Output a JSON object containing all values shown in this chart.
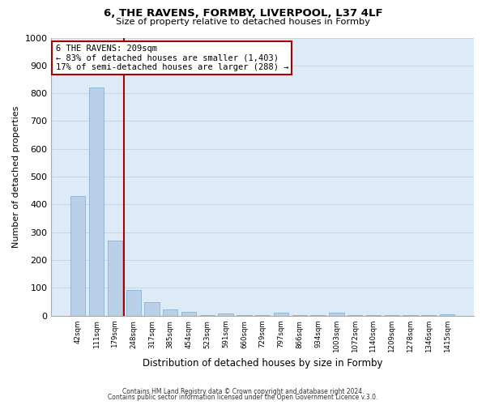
{
  "title": "6, THE RAVENS, FORMBY, LIVERPOOL, L37 4LF",
  "subtitle": "Size of property relative to detached houses in Formby",
  "xlabel": "Distribution of detached houses by size in Formby",
  "ylabel": "Number of detached properties",
  "bar_color": "#b8d0e8",
  "bar_edge_color": "#7aaace",
  "bar_background_color": "#ddeaf7",
  "grid_color": "#c5d5e5",
  "categories": [
    "42sqm",
    "111sqm",
    "179sqm",
    "248sqm",
    "317sqm",
    "385sqm",
    "454sqm",
    "523sqm",
    "591sqm",
    "660sqm",
    "729sqm",
    "797sqm",
    "866sqm",
    "934sqm",
    "1003sqm",
    "1072sqm",
    "1140sqm",
    "1209sqm",
    "1278sqm",
    "1346sqm",
    "1415sqm"
  ],
  "values": [
    430,
    820,
    270,
    92,
    48,
    22,
    15,
    1,
    8,
    1,
    1,
    12,
    1,
    1,
    10,
    1,
    1,
    1,
    1,
    1,
    5
  ],
  "property_label": "6 THE RAVENS: 209sqm",
  "pct_smaller": 83,
  "count_smaller": 1403,
  "pct_larger_semi": 17,
  "count_larger_semi": 288,
  "vline_x_index": 2.5,
  "annotation_box_color": "#aa0000",
  "ylim": [
    0,
    1000
  ],
  "yticks": [
    0,
    100,
    200,
    300,
    400,
    500,
    600,
    700,
    800,
    900,
    1000
  ],
  "footer1": "Contains HM Land Registry data © Crown copyright and database right 2024.",
  "footer2": "Contains public sector information licensed under the Open Government Licence v.3.0."
}
